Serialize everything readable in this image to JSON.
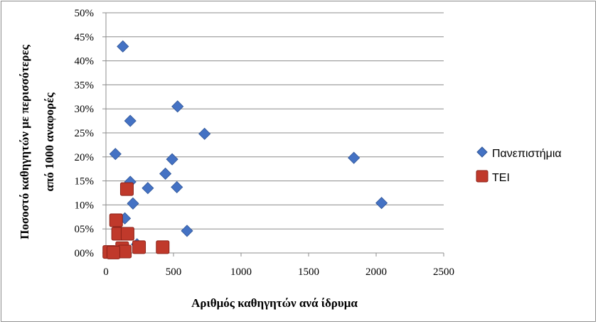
{
  "chart_data": {
    "type": "scatter",
    "title": "",
    "xlabel": "Αριθμός καθηγητών ανά ίδρυμα",
    "ylabel": "Ποσοστό καθηγητών με περισσότερες από 1000 αναφορές",
    "ylabel_lines": [
      "Ποσοστό καθηγητών με περισσότερες",
      "από 1000 αναφορές"
    ],
    "xlim": [
      0,
      2500
    ],
    "ylim": [
      0,
      0.5
    ],
    "x_ticks": [
      0,
      500,
      1000,
      1500,
      2000,
      2500
    ],
    "x_tick_labels": [
      "0",
      "500",
      "1000",
      "1500",
      "2000",
      "2500"
    ],
    "y_ticks": [
      0,
      0.05,
      0.1,
      0.15,
      0.2,
      0.25,
      0.3,
      0.35,
      0.4,
      0.45,
      0.5
    ],
    "y_tick_labels": [
      "00%",
      "05%",
      "10%",
      "15%",
      "20%",
      "25%",
      "30%",
      "35%",
      "40%",
      "45%",
      "50%"
    ],
    "grid": "horizontal",
    "legend_position": "right",
    "series": [
      {
        "name": "Πανεπιστήμια",
        "marker": "diamond",
        "color": "#4472C4",
        "x": [
          125,
          180,
          530,
          730,
          1835,
          2040,
          70,
          490,
          440,
          180,
          525,
          310,
          200,
          140,
          600,
          230
        ],
        "y": [
          0.43,
          0.275,
          0.305,
          0.248,
          0.198,
          0.104,
          0.206,
          0.195,
          0.165,
          0.148,
          0.137,
          0.135,
          0.103,
          0.072,
          0.046,
          0.018
        ]
      },
      {
        "name": "ΤΕΙ",
        "marker": "square",
        "color": "#C0392B",
        "x": [
          155,
          75,
          90,
          160,
          245,
          420,
          120,
          140,
          25,
          55
        ],
        "y": [
          0.133,
          0.068,
          0.04,
          0.04,
          0.012,
          0.012,
          0.01,
          0.003,
          0.002,
          0.001
        ]
      }
    ]
  }
}
